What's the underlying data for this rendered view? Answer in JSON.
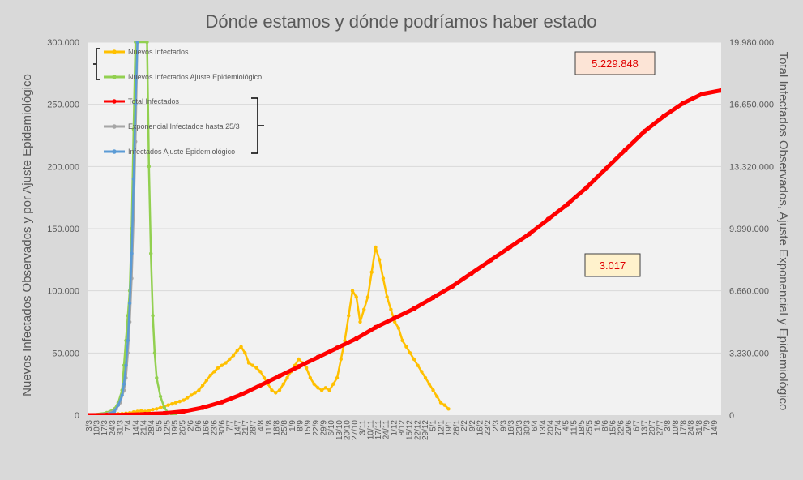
{
  "chart_data": {
    "type": "line",
    "title": "Dónde estamos y dónde podríamos haber estado",
    "ylabel_left": "Nuevos Infectados Observados y por Ajuste Epidemiológico",
    "ylabel_right": "Total Infectados Observados, Ajuste Exponencial y Epidemiológico",
    "ylim_left": [
      0,
      300000
    ],
    "ylim_right": [
      0,
      19980000
    ],
    "yticks_left": [
      "0",
      "50.000",
      "100.000",
      "150.000",
      "200.000",
      "250.000",
      "300.000"
    ],
    "yticks_right": [
      "0",
      "3.330.000",
      "6.660.000",
      "9.990.000",
      "13.320.000",
      "16.650.000",
      "19.980.000"
    ],
    "x_count": 79,
    "x_tick_labels": [
      "3/3",
      "10/3",
      "17/3",
      "24/3",
      "31/3",
      "7/4",
      "14/4",
      "21/4",
      "28/4",
      "5/5",
      "12/5",
      "19/5",
      "26/5",
      "2/6",
      "9/6",
      "16/6",
      "23/6",
      "30/6",
      "7/7",
      "14/7",
      "21/7",
      "28/7",
      "4/8",
      "11/8",
      "18/8",
      "25/8",
      "1/9",
      "8/9",
      "15/9",
      "22/9",
      "29/9",
      "6/10",
      "13/10",
      "20/10",
      "27/10",
      "3/11",
      "10/11",
      "17/11",
      "24/11",
      "1/12",
      "8/12",
      "15/12",
      "22/12",
      "29/12",
      "5/1",
      "12/1",
      "19/1",
      "26/1",
      "2/2",
      "9/2",
      "16/2",
      "23/2",
      "2/3",
      "9/3",
      "16/3",
      "23/3",
      "30/3",
      "6/4",
      "13/4",
      "20/4",
      "27/4",
      "4/5",
      "11/5",
      "18/5",
      "25/5",
      "1/6",
      "8/6",
      "15/6",
      "22/6",
      "29/6",
      "6/7",
      "13/7",
      "20/7",
      "27/7",
      "3/8",
      "10/8",
      "17/8",
      "24/8",
      "31/8",
      "7/9",
      "14/9"
    ],
    "grid": true,
    "legend_position": "top-left",
    "series": [
      {
        "name": "Nuevos Infectados",
        "axis": "left",
        "color": "#ffc000",
        "points": [
          [
            0,
            0
          ],
          [
            2,
            50
          ],
          [
            4,
            150
          ],
          [
            6,
            300
          ],
          [
            8,
            600
          ],
          [
            10,
            800
          ],
          [
            12,
            900
          ],
          [
            14,
            1000
          ],
          [
            16,
            1000
          ],
          [
            18,
            1200
          ],
          [
            20,
            1500
          ],
          [
            22,
            1800
          ],
          [
            24,
            2500
          ],
          [
            26,
            3000
          ],
          [
            28,
            3500
          ],
          [
            30,
            3000
          ],
          [
            32,
            3500
          ],
          [
            34,
            4500
          ],
          [
            36,
            5000
          ],
          [
            38,
            6000
          ],
          [
            40,
            7000
          ],
          [
            42,
            8000
          ],
          [
            44,
            9000
          ],
          [
            46,
            10000
          ],
          [
            48,
            11000
          ],
          [
            50,
            12000
          ],
          [
            52,
            14000
          ],
          [
            54,
            16000
          ],
          [
            56,
            18000
          ],
          [
            58,
            20000
          ],
          [
            60,
            24000
          ],
          [
            62,
            28000
          ],
          [
            64,
            32000
          ],
          [
            66,
            35000
          ],
          [
            68,
            38000
          ],
          [
            70,
            40000
          ],
          [
            72,
            42000
          ],
          [
            74,
            45000
          ],
          [
            76,
            48000
          ],
          [
            78,
            52000
          ],
          [
            80,
            55000
          ],
          [
            82,
            50000
          ],
          [
            84,
            42000
          ],
          [
            86,
            40000
          ],
          [
            88,
            38000
          ],
          [
            90,
            35000
          ],
          [
            92,
            30000
          ],
          [
            94,
            25000
          ],
          [
            96,
            20000
          ],
          [
            98,
            18000
          ],
          [
            100,
            20000
          ],
          [
            102,
            25000
          ],
          [
            104,
            30000
          ],
          [
            106,
            35000
          ],
          [
            108,
            40000
          ],
          [
            110,
            45000
          ],
          [
            112,
            42000
          ],
          [
            114,
            38000
          ],
          [
            116,
            30000
          ],
          [
            118,
            25000
          ],
          [
            120,
            22000
          ],
          [
            122,
            20000
          ],
          [
            124,
            22000
          ],
          [
            126,
            20000
          ],
          [
            128,
            25000
          ],
          [
            130,
            30000
          ],
          [
            132,
            45000
          ],
          [
            134,
            60000
          ],
          [
            136,
            80000
          ],
          [
            138,
            100000
          ],
          [
            140,
            95000
          ],
          [
            142,
            75000
          ],
          [
            144,
            85000
          ],
          [
            146,
            95000
          ],
          [
            148,
            115000
          ],
          [
            150,
            135000
          ],
          [
            152,
            125000
          ],
          [
            154,
            110000
          ],
          [
            156,
            95000
          ],
          [
            158,
            85000
          ],
          [
            160,
            75000
          ],
          [
            162,
            70000
          ],
          [
            164,
            60000
          ],
          [
            166,
            55000
          ],
          [
            168,
            50000
          ],
          [
            170,
            45000
          ],
          [
            172,
            40000
          ],
          [
            174,
            35000
          ],
          [
            176,
            30000
          ],
          [
            178,
            25000
          ],
          [
            180,
            20000
          ],
          [
            182,
            15000
          ],
          [
            184,
            10000
          ],
          [
            186,
            8000
          ],
          [
            188,
            5000
          ]
        ]
      },
      {
        "name": "Nuevos Infectados Ajuste Epidemiológico",
        "axis": "left",
        "color": "#92d050",
        "points": [
          [
            0,
            0
          ],
          [
            10,
            2000
          ],
          [
            14,
            5000
          ],
          [
            16,
            10000
          ],
          [
            18,
            20000
          ],
          [
            19,
            40000
          ],
          [
            20,
            60000
          ],
          [
            21,
            80000
          ],
          [
            22,
            100000
          ],
          [
            23,
            150000
          ],
          [
            24,
            230000
          ],
          [
            25,
            300000
          ],
          [
            26,
            300000
          ],
          [
            31,
            300000
          ],
          [
            32,
            200000
          ],
          [
            33,
            130000
          ],
          [
            34,
            80000
          ],
          [
            35,
            50000
          ],
          [
            36,
            30000
          ],
          [
            38,
            15000
          ],
          [
            40,
            6000
          ],
          [
            42,
            2000
          ],
          [
            44,
            500
          ],
          [
            46,
            0
          ]
        ]
      },
      {
        "name": "Total Infectados",
        "axis": "right",
        "color": "#ff0000",
        "points": [
          [
            0,
            0
          ],
          [
            10,
            5000
          ],
          [
            20,
            20000
          ],
          [
            30,
            50000
          ],
          [
            40,
            100000
          ],
          [
            50,
            200000
          ],
          [
            60,
            400000
          ],
          [
            70,
            700000
          ],
          [
            80,
            1100000
          ],
          [
            90,
            1600000
          ],
          [
            100,
            2100000
          ],
          [
            110,
            2600000
          ],
          [
            120,
            3100000
          ],
          [
            130,
            3600000
          ],
          [
            140,
            4100000
          ],
          [
            150,
            4700000
          ],
          [
            160,
            5200000
          ],
          [
            170,
            5700000
          ],
          [
            180,
            6300000
          ],
          [
            190,
            6900000
          ],
          [
            200,
            7600000
          ],
          [
            210,
            8300000
          ],
          [
            220,
            9000000
          ],
          [
            230,
            9700000
          ],
          [
            240,
            10500000
          ],
          [
            250,
            11300000
          ],
          [
            260,
            12200000
          ],
          [
            270,
            13200000
          ],
          [
            280,
            14200000
          ],
          [
            290,
            15200000
          ],
          [
            300,
            16000000
          ],
          [
            310,
            16700000
          ],
          [
            320,
            17200000
          ],
          [
            330,
            17400000
          ]
        ]
      },
      {
        "name": "Exponencial Infectados hasta 25/3",
        "axis": "left",
        "color": "#a6a6a6",
        "points": [
          [
            0,
            0
          ],
          [
            8,
            800
          ],
          [
            12,
            2000
          ],
          [
            15,
            5000
          ],
          [
            17,
            10000
          ],
          [
            19,
            20000
          ],
          [
            20,
            30000
          ],
          [
            21,
            50000
          ],
          [
            22,
            75000
          ],
          [
            23,
            110000
          ],
          [
            24,
            160000
          ],
          [
            25,
            220000
          ],
          [
            26,
            300000
          ]
        ]
      },
      {
        "name": "Infectados Ajuste Epidemiológico",
        "axis": "left",
        "color": "#5b9bd5",
        "points": [
          [
            0,
            0
          ],
          [
            10,
            500
          ],
          [
            14,
            3000
          ],
          [
            16,
            8000
          ],
          [
            18,
            16000
          ],
          [
            19,
            25000
          ],
          [
            20,
            40000
          ],
          [
            21,
            60000
          ],
          [
            22,
            90000
          ],
          [
            23,
            130000
          ],
          [
            24,
            190000
          ],
          [
            25,
            250000
          ],
          [
            26,
            300000
          ]
        ]
      }
    ],
    "annotations": [
      {
        "text": "5.229.848",
        "fill": "#fce4d6"
      },
      {
        "text": "3.017",
        "fill": "#fff2cc"
      }
    ]
  }
}
